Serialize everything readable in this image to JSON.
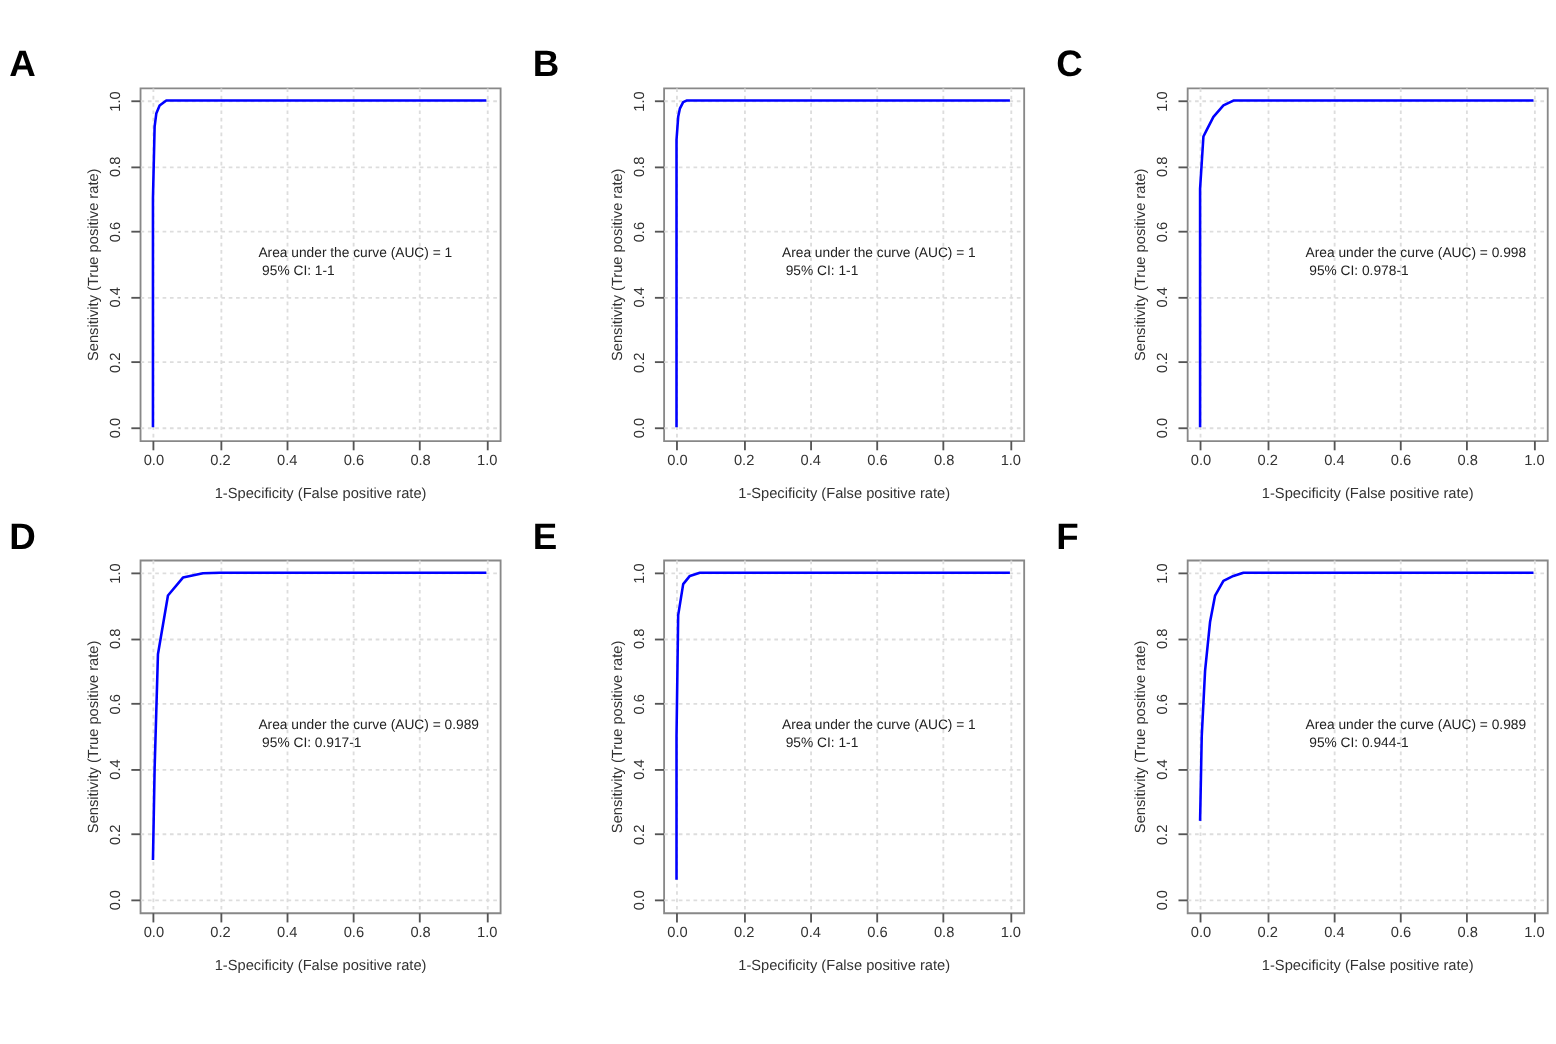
{
  "chart_data": [
    {
      "type": "line",
      "title": "A",
      "xlabel": "1-Specificity (False positive rate)",
      "ylabel": "Sensitivity (True positive rate)",
      "annotations": [
        "Area under the curve (AUC) = 1",
        "95% CI: 1-1"
      ],
      "series": [
        {
          "color": "#0000ff",
          "x": [
            0,
            0,
            0.005,
            0.01,
            0.02,
            0.04,
            1
          ],
          "values": [
            0,
            0.7,
            0.92,
            0.96,
            0.985,
            1,
            1
          ]
        }
      ],
      "xlim": [
        -0.04,
        1.04
      ],
      "ylim": [
        -0.04,
        1.04
      ],
      "xticks": [
        {
          "value": 0,
          "label": "0.0"
        },
        {
          "value": 0.2,
          "label": "0.2"
        },
        {
          "value": 0.4,
          "label": "0.4"
        },
        {
          "value": 0.6,
          "label": "0.6"
        },
        {
          "value": 0.8,
          "label": "0.8"
        },
        {
          "value": 1,
          "label": "1.0"
        }
      ],
      "yticks": [
        {
          "value": 0,
          "label": "0.0"
        },
        {
          "value": 0.2,
          "label": "0.2"
        },
        {
          "value": 0.4,
          "label": "0.4"
        },
        {
          "value": 0.6,
          "label": "0.6"
        },
        {
          "value": 0.8,
          "label": "0.8"
        },
        {
          "value": 1,
          "label": "1.0"
        }
      ],
      "grid": true
    },
    {
      "type": "line",
      "title": "B",
      "xlabel": "1-Specificity (False positive rate)",
      "ylabel": "Sensitivity (True positive rate)",
      "annotations": [
        "Area under the curve (AUC) = 1",
        "95% CI: 1-1"
      ],
      "series": [
        {
          "color": "#0000ff",
          "x": [
            0,
            0,
            0.005,
            0.01,
            0.02,
            0.03,
            1
          ],
          "values": [
            0,
            0.88,
            0.95,
            0.975,
            0.995,
            1,
            1
          ]
        }
      ],
      "xlim": [
        -0.04,
        1.04
      ],
      "ylim": [
        -0.04,
        1.04
      ],
      "xticks": [
        {
          "value": 0,
          "label": "0.0"
        },
        {
          "value": 0.2,
          "label": "0.2"
        },
        {
          "value": 0.4,
          "label": "0.4"
        },
        {
          "value": 0.6,
          "label": "0.6"
        },
        {
          "value": 0.8,
          "label": "0.8"
        },
        {
          "value": 1,
          "label": "1.0"
        }
      ],
      "yticks": [
        {
          "value": 0,
          "label": "0.0"
        },
        {
          "value": 0.2,
          "label": "0.2"
        },
        {
          "value": 0.4,
          "label": "0.4"
        },
        {
          "value": 0.6,
          "label": "0.6"
        },
        {
          "value": 0.8,
          "label": "0.8"
        },
        {
          "value": 1,
          "label": "1.0"
        }
      ],
      "grid": true
    },
    {
      "type": "line",
      "title": "C",
      "xlabel": "1-Specificity (False positive rate)",
      "ylabel": "Sensitivity (True positive rate)",
      "annotations": [
        "Area under the curve (AUC) = 0.998",
        "95% CI: 0.978-1"
      ],
      "series": [
        {
          "color": "#0000ff",
          "x": [
            0,
            0,
            0.01,
            0.02,
            0.04,
            0.07,
            0.1,
            1
          ],
          "values": [
            0,
            0.73,
            0.89,
            0.91,
            0.95,
            0.985,
            1,
            1
          ]
        }
      ],
      "xlim": [
        -0.04,
        1.04
      ],
      "ylim": [
        -0.04,
        1.04
      ],
      "xticks": [
        {
          "value": 0,
          "label": "0.0"
        },
        {
          "value": 0.2,
          "label": "0.2"
        },
        {
          "value": 0.4,
          "label": "0.4"
        },
        {
          "value": 0.6,
          "label": "0.6"
        },
        {
          "value": 0.8,
          "label": "0.8"
        },
        {
          "value": 1,
          "label": "1.0"
        }
      ],
      "yticks": [
        {
          "value": 0,
          "label": "0.0"
        },
        {
          "value": 0.2,
          "label": "0.2"
        },
        {
          "value": 0.4,
          "label": "0.4"
        },
        {
          "value": 0.6,
          "label": "0.6"
        },
        {
          "value": 0.8,
          "label": "0.8"
        },
        {
          "value": 1,
          "label": "1.0"
        }
      ],
      "grid": true
    },
    {
      "type": "line",
      "title": "D",
      "xlabel": "1-Specificity (False positive rate)",
      "ylabel": "Sensitivity (True positive rate)",
      "annotations": [
        "Area under the curve (AUC) = 0.989",
        "95% CI: 0.917-1"
      ],
      "series": [
        {
          "color": "#0000ff",
          "x": [
            0,
            0.005,
            0.015,
            0.045,
            0.09,
            0.15,
            0.2,
            1
          ],
          "values": [
            0.12,
            0.4,
            0.75,
            0.93,
            0.985,
            0.998,
            1,
            1
          ]
        }
      ],
      "xlim": [
        -0.04,
        1.04
      ],
      "ylim": [
        -0.04,
        1.04
      ],
      "xticks": [
        {
          "value": 0,
          "label": "0.0"
        },
        {
          "value": 0.2,
          "label": "0.2"
        },
        {
          "value": 0.4,
          "label": "0.4"
        },
        {
          "value": 0.6,
          "label": "0.6"
        },
        {
          "value": 0.8,
          "label": "0.8"
        },
        {
          "value": 1,
          "label": "1.0"
        }
      ],
      "yticks": [
        {
          "value": 0,
          "label": "0.0"
        },
        {
          "value": 0.2,
          "label": "0.2"
        },
        {
          "value": 0.4,
          "label": "0.4"
        },
        {
          "value": 0.6,
          "label": "0.6"
        },
        {
          "value": 0.8,
          "label": "0.8"
        },
        {
          "value": 1,
          "label": "1.0"
        }
      ],
      "grid": true
    },
    {
      "type": "line",
      "title": "E",
      "xlabel": "1-Specificity (False positive rate)",
      "ylabel": "Sensitivity (True positive rate)",
      "annotations": [
        "Area under the curve (AUC) = 1",
        "95% CI: 1-1"
      ],
      "series": [
        {
          "color": "#0000ff",
          "x": [
            0,
            0,
            0.005,
            0.02,
            0.04,
            0.07,
            1
          ],
          "values": [
            0.06,
            0.5,
            0.87,
            0.965,
            0.99,
            1,
            1
          ]
        }
      ],
      "xlim": [
        -0.04,
        1.04
      ],
      "ylim": [
        -0.04,
        1.04
      ],
      "xticks": [
        {
          "value": 0,
          "label": "0.0"
        },
        {
          "value": 0.2,
          "label": "0.2"
        },
        {
          "value": 0.4,
          "label": "0.4"
        },
        {
          "value": 0.6,
          "label": "0.6"
        },
        {
          "value": 0.8,
          "label": "0.8"
        },
        {
          "value": 1,
          "label": "1.0"
        }
      ],
      "yticks": [
        {
          "value": 0,
          "label": "0.0"
        },
        {
          "value": 0.2,
          "label": "0.2"
        },
        {
          "value": 0.4,
          "label": "0.4"
        },
        {
          "value": 0.6,
          "label": "0.6"
        },
        {
          "value": 0.8,
          "label": "0.8"
        },
        {
          "value": 1,
          "label": "1.0"
        }
      ],
      "grid": true
    },
    {
      "type": "line",
      "title": "F",
      "xlabel": "1-Specificity (False positive rate)",
      "ylabel": "Sensitivity (True positive rate)",
      "annotations": [
        "Area under the curve (AUC) = 0.989",
        "95% CI: 0.944-1"
      ],
      "series": [
        {
          "color": "#0000ff",
          "x": [
            0,
            0.005,
            0.015,
            0.03,
            0.045,
            0.07,
            0.1,
            0.13,
            1
          ],
          "values": [
            0.24,
            0.5,
            0.7,
            0.85,
            0.93,
            0.975,
            0.99,
            1,
            1
          ]
        }
      ],
      "xlim": [
        -0.04,
        1.04
      ],
      "ylim": [
        -0.04,
        1.04
      ],
      "xticks": [
        {
          "value": 0,
          "label": "0.0"
        },
        {
          "value": 0.2,
          "label": "0.2"
        },
        {
          "value": 0.4,
          "label": "0.4"
        },
        {
          "value": 0.6,
          "label": "0.6"
        },
        {
          "value": 0.8,
          "label": "0.8"
        },
        {
          "value": 1,
          "label": "1.0"
        }
      ],
      "yticks": [
        {
          "value": 0,
          "label": "0.0"
        },
        {
          "value": 0.2,
          "label": "0.2"
        },
        {
          "value": 0.4,
          "label": "0.4"
        },
        {
          "value": 0.6,
          "label": "0.6"
        },
        {
          "value": 0.8,
          "label": "0.8"
        },
        {
          "value": 1,
          "label": "1.0"
        }
      ],
      "grid": true
    }
  ]
}
